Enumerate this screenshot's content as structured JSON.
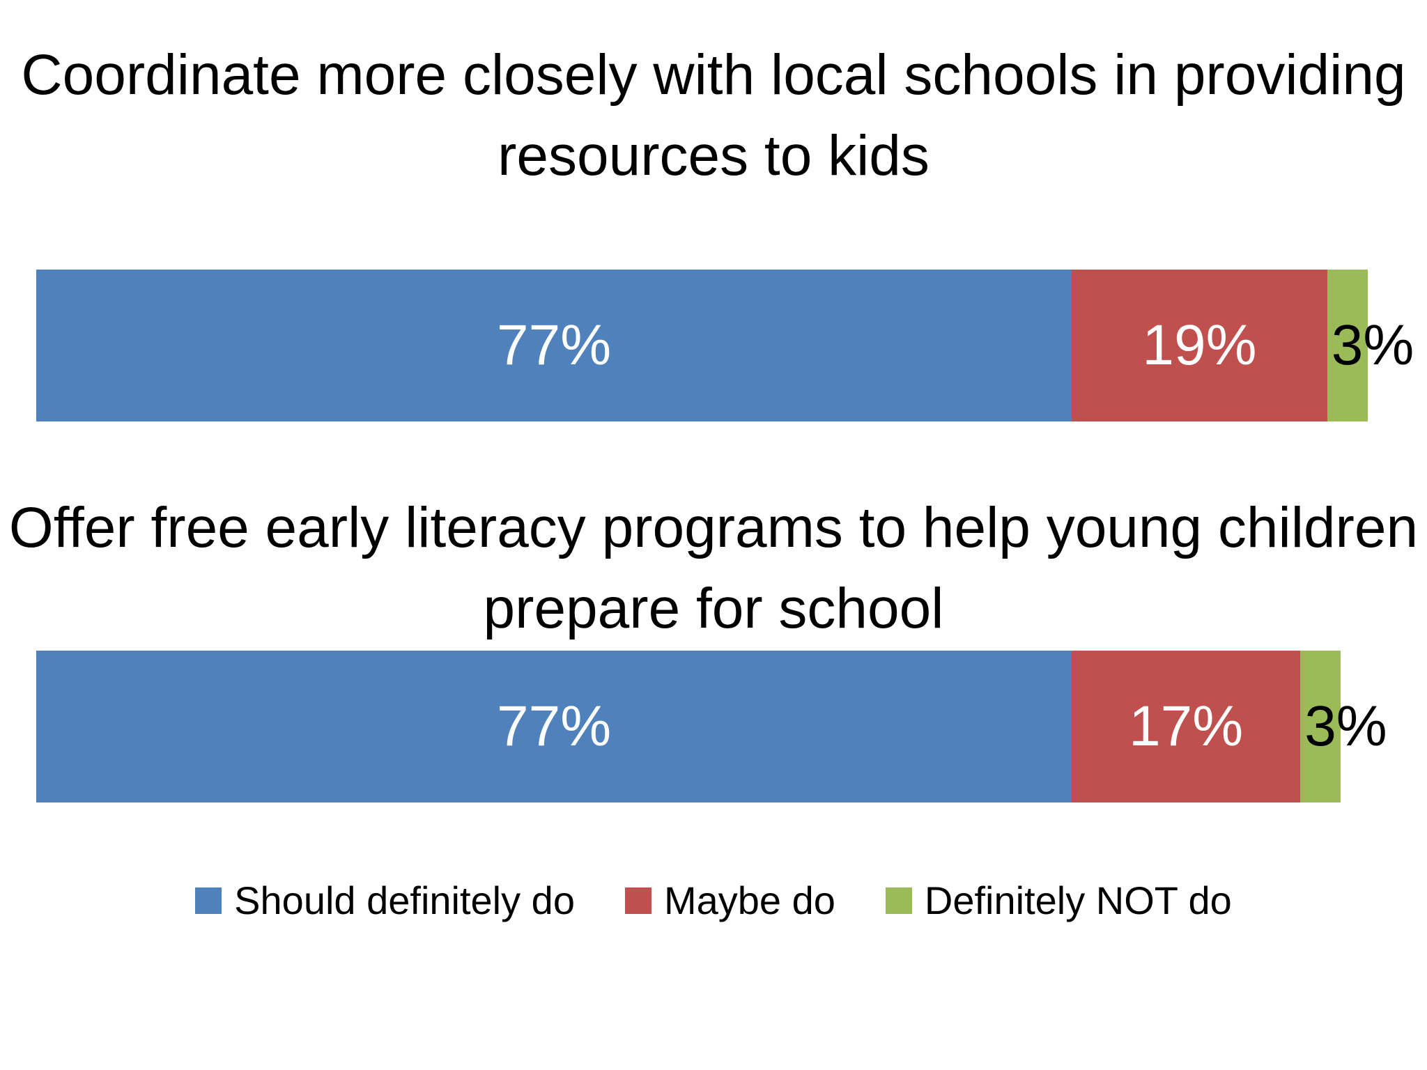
{
  "chart_data": [
    {
      "type": "bar",
      "orientation": "horizontal-stacked",
      "title": "Coordinate more closely with local schools in providing resources to kids",
      "categories": [
        "Should definitely do",
        "Maybe do",
        "Definitely NOT do"
      ],
      "values": [
        77,
        19,
        3
      ],
      "labels": [
        "77%",
        "19%",
        "3%"
      ],
      "xlim": [
        0,
        100
      ]
    },
    {
      "type": "bar",
      "orientation": "horizontal-stacked",
      "title": "Offer free early literacy programs to help young children prepare for school",
      "categories": [
        "Should definitely do",
        "Maybe do",
        "Definitely NOT do"
      ],
      "values": [
        77,
        17,
        3
      ],
      "labels": [
        "77%",
        "17%",
        "3%"
      ],
      "xlim": [
        0,
        100
      ]
    }
  ],
  "legend": {
    "placement": "bottom",
    "items": [
      {
        "label": "Should definitely do",
        "color": "#4F81BD"
      },
      {
        "label": "Maybe do",
        "color": "#C0504D"
      },
      {
        "label": "Definitely NOT do",
        "color": "#9BBB59"
      }
    ]
  }
}
